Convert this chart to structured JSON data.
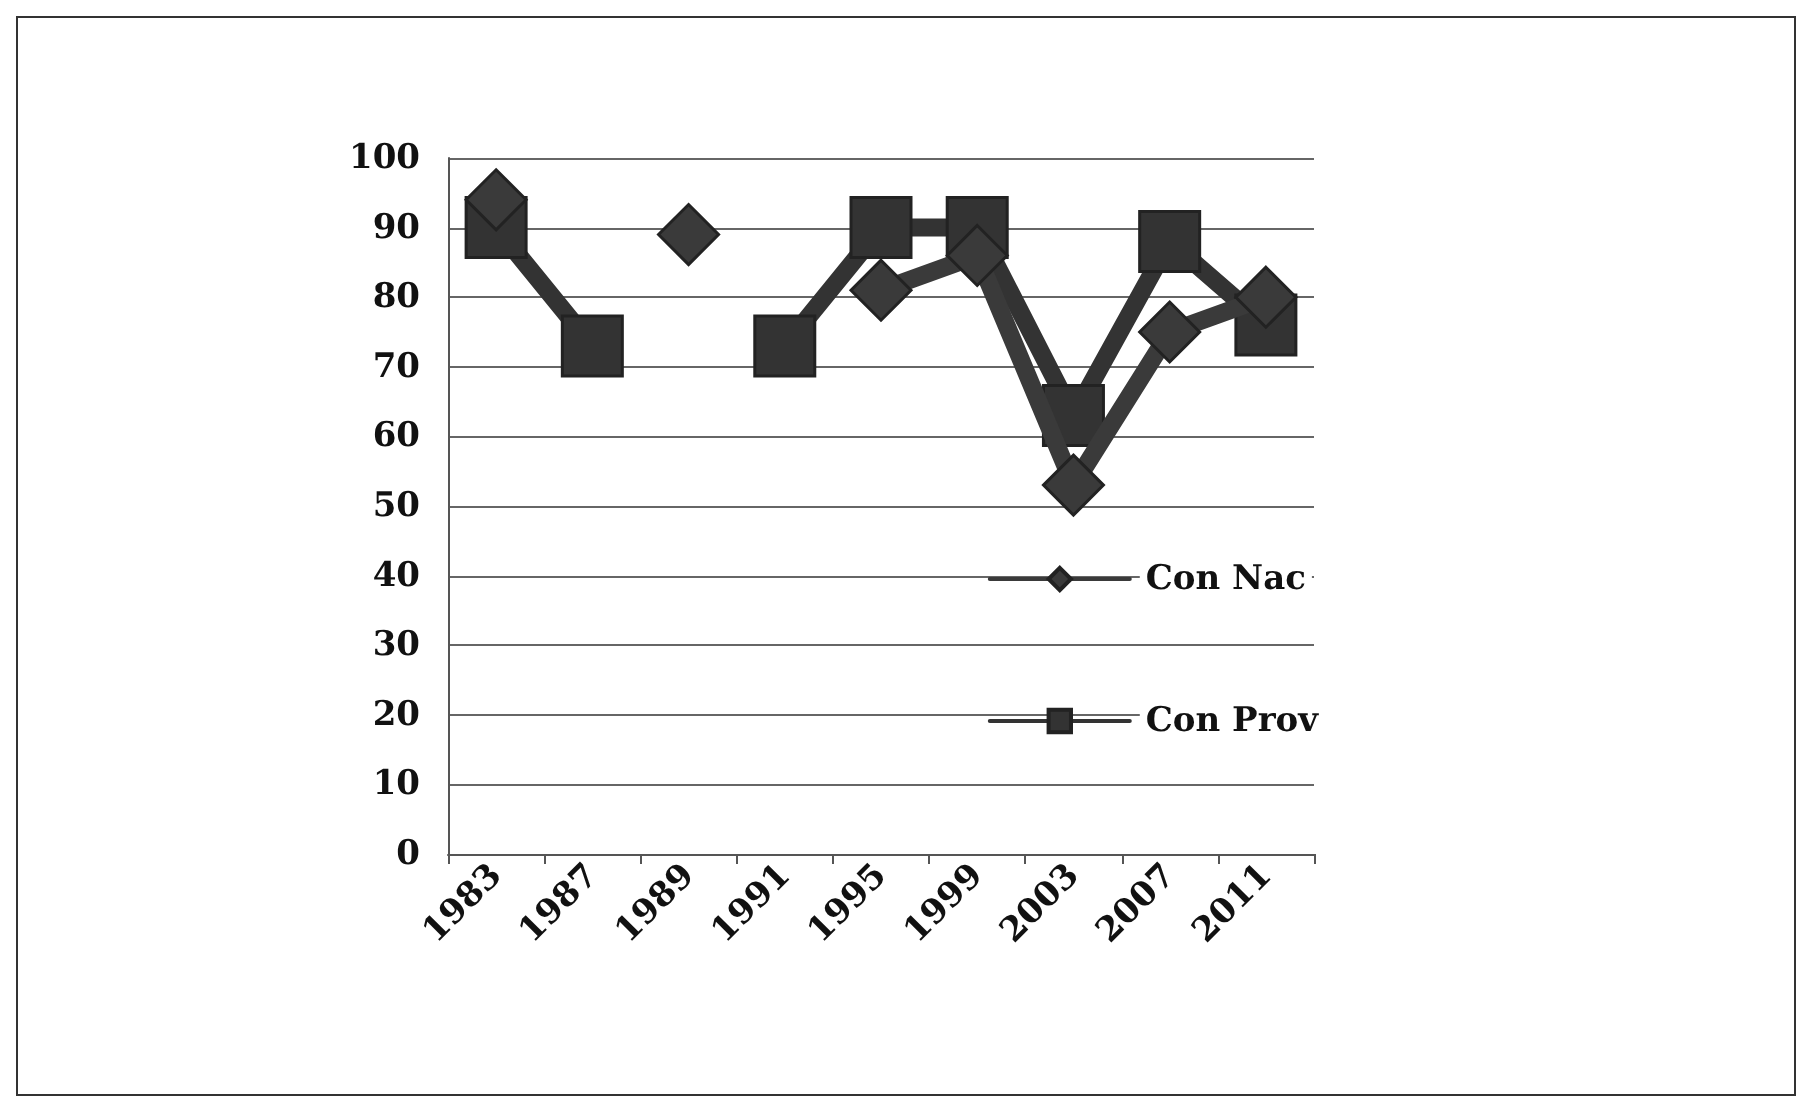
{
  "chart_data": {
    "type": "line",
    "categories": [
      "1983",
      "1987",
      "1989",
      "1991",
      "1995",
      "1999",
      "2003",
      "2007",
      "2011"
    ],
    "series": [
      {
        "name": "Con Nac",
        "color": "#3a3a3a",
        "marker": "diamond",
        "values": [
          94,
          null,
          89,
          null,
          81,
          86,
          53,
          75,
          80
        ]
      },
      {
        "name": "Con Prov",
        "color": "#333333",
        "marker": "square",
        "values": [
          90,
          73,
          null,
          73,
          90,
          90,
          63,
          88,
          76
        ]
      }
    ],
    "ylim": [
      0,
      100
    ],
    "yticks": [
      0,
      10,
      20,
      30,
      40,
      50,
      60,
      70,
      80,
      90,
      100
    ],
    "grid": "y",
    "legend": "right",
    "line_style": "solid"
  }
}
